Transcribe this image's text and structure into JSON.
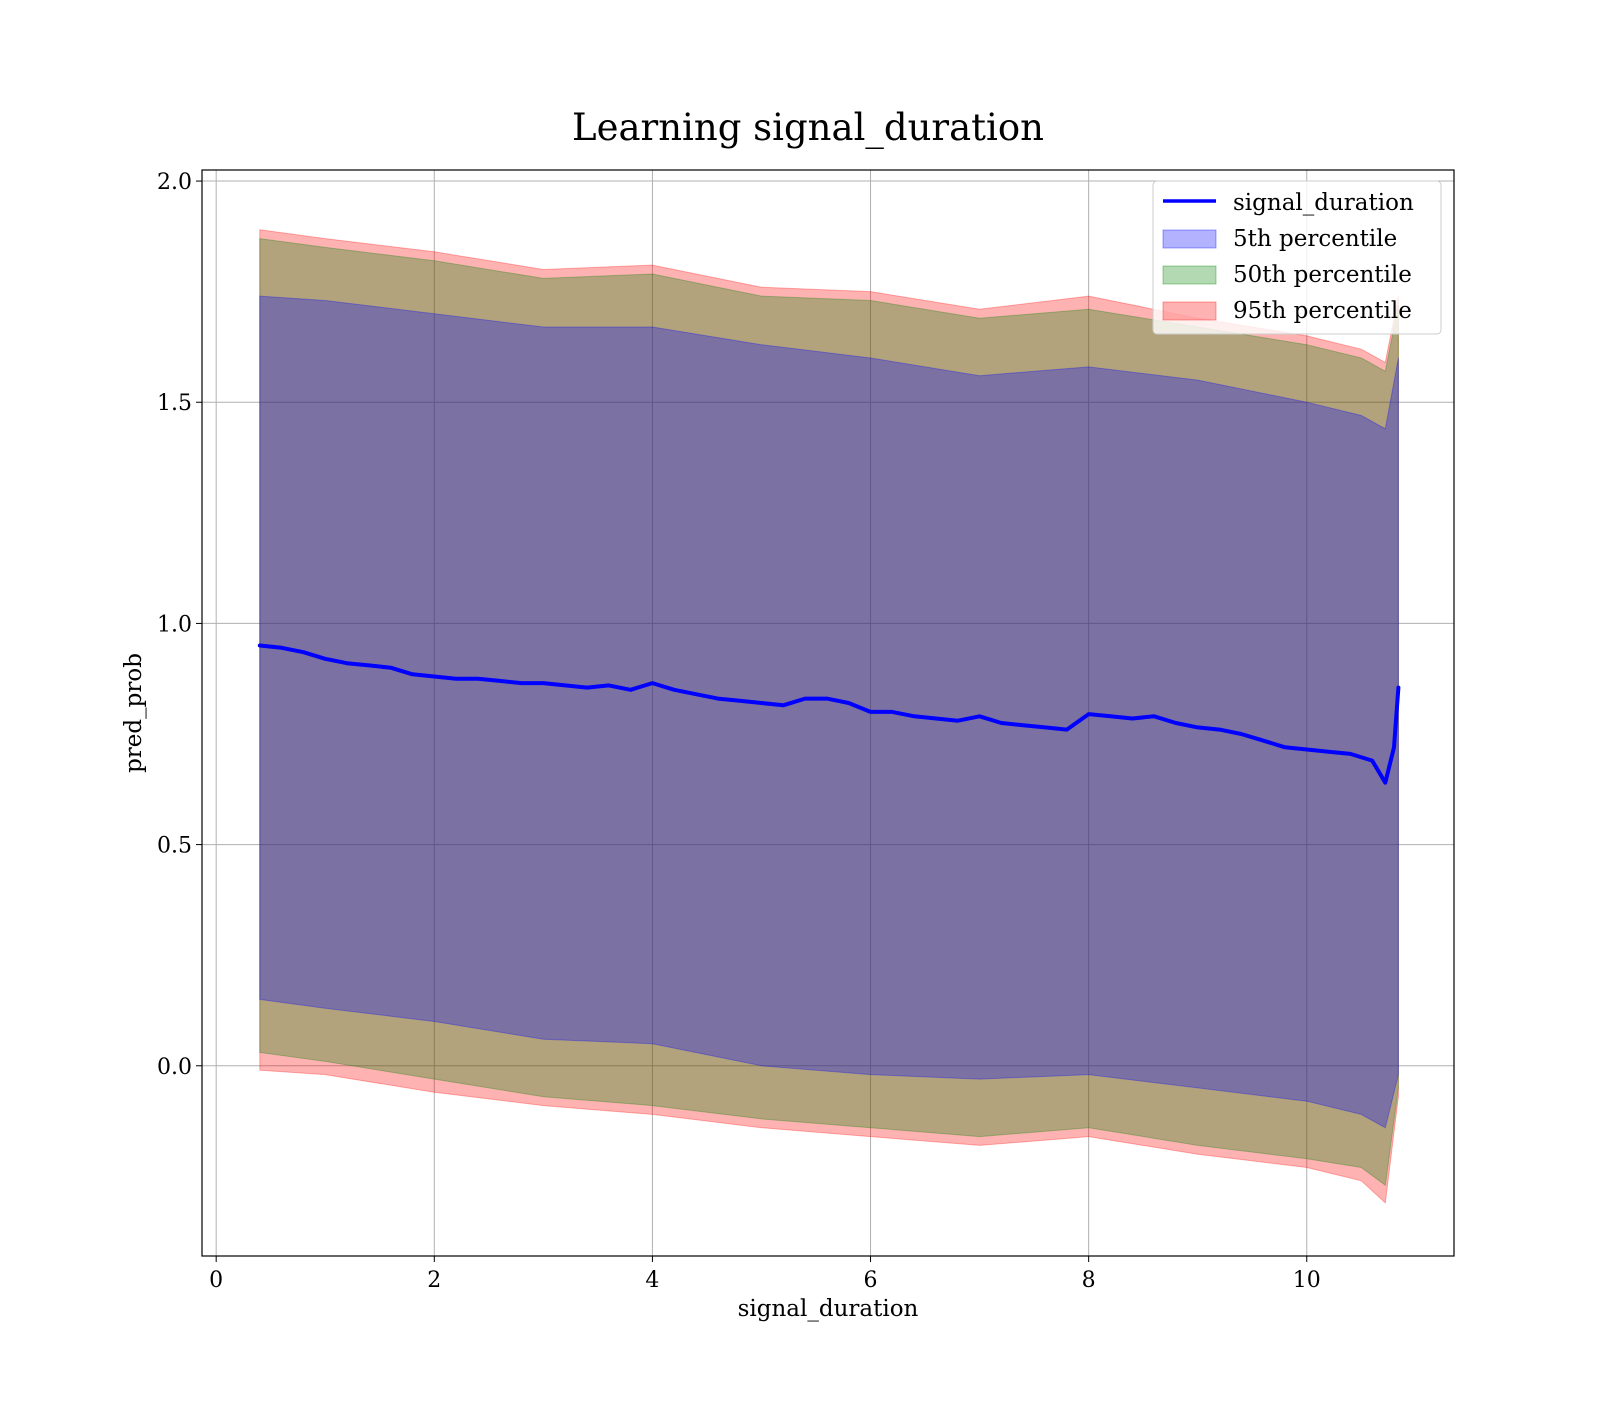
{
  "chart_data": {
    "type": "area",
    "title": "Learning signal_duration",
    "xlabel": "signal_duration",
    "ylabel": "pred_prob",
    "xlim": [
      -0.13,
      11.35
    ],
    "ylim": [
      -0.43,
      2.025
    ],
    "xticks": [
      0,
      2,
      4,
      6,
      8,
      10
    ],
    "yticks": [
      0.0,
      0.5,
      1.0,
      1.5,
      2.0
    ],
    "xtick_labels": [
      "0",
      "2",
      "4",
      "6",
      "8",
      "10"
    ],
    "ytick_labels": [
      "0.0",
      "0.5",
      "1.0",
      "1.5",
      "2.0"
    ],
    "grid": true,
    "legend_position": "top-right",
    "legend": [
      "signal_duration",
      "5th percentile",
      "50th percentile",
      "95th percentile"
    ],
    "line_series": {
      "name": "signal_duration",
      "color": "#0000ff",
      "x": [
        0.4,
        0.6,
        0.8,
        1.0,
        1.2,
        1.4,
        1.6,
        1.8,
        2.0,
        2.2,
        2.4,
        2.6,
        2.8,
        3.0,
        3.2,
        3.4,
        3.6,
        3.8,
        4.0,
        4.2,
        4.4,
        4.6,
        4.8,
        5.0,
        5.2,
        5.4,
        5.6,
        5.8,
        6.0,
        6.2,
        6.4,
        6.6,
        6.8,
        7.0,
        7.2,
        7.4,
        7.6,
        7.8,
        8.0,
        8.2,
        8.4,
        8.6,
        8.8,
        9.0,
        9.2,
        9.4,
        9.6,
        9.8,
        10.0,
        10.2,
        10.4,
        10.6,
        10.72,
        10.8,
        10.84
      ],
      "values": [
        0.95,
        0.945,
        0.935,
        0.92,
        0.91,
        0.905,
        0.9,
        0.885,
        0.88,
        0.875,
        0.875,
        0.87,
        0.865,
        0.865,
        0.86,
        0.855,
        0.86,
        0.85,
        0.865,
        0.85,
        0.84,
        0.83,
        0.825,
        0.82,
        0.815,
        0.83,
        0.83,
        0.82,
        0.8,
        0.8,
        0.79,
        0.785,
        0.78,
        0.79,
        0.775,
        0.77,
        0.765,
        0.76,
        0.795,
        0.79,
        0.785,
        0.79,
        0.775,
        0.765,
        0.76,
        0.75,
        0.735,
        0.72,
        0.715,
        0.71,
        0.705,
        0.69,
        0.64,
        0.72,
        0.855
      ]
    },
    "bands": [
      {
        "name": "5th percentile",
        "color": "#0000ff",
        "x": [
          0.4,
          1.0,
          2.0,
          3.0,
          4.0,
          5.0,
          6.0,
          7.0,
          8.0,
          9.0,
          10.0,
          10.5,
          10.72,
          10.84
        ],
        "lower": [
          0.15,
          0.13,
          0.1,
          0.06,
          0.05,
          0.0,
          -0.02,
          -0.03,
          -0.02,
          -0.05,
          -0.08,
          -0.11,
          -0.14,
          -0.02
        ],
        "upper": [
          1.74,
          1.73,
          1.7,
          1.67,
          1.67,
          1.63,
          1.6,
          1.56,
          1.58,
          1.55,
          1.5,
          1.47,
          1.44,
          1.6
        ]
      },
      {
        "name": "50th percentile",
        "color": "#008000",
        "x": [
          0.4,
          1.0,
          2.0,
          3.0,
          4.0,
          5.0,
          6.0,
          7.0,
          8.0,
          9.0,
          10.0,
          10.5,
          10.72,
          10.84
        ],
        "lower": [
          0.03,
          0.01,
          -0.03,
          -0.07,
          -0.09,
          -0.12,
          -0.14,
          -0.16,
          -0.14,
          -0.18,
          -0.21,
          -0.23,
          -0.27,
          -0.05
        ],
        "upper": [
          1.87,
          1.85,
          1.82,
          1.78,
          1.79,
          1.74,
          1.73,
          1.69,
          1.71,
          1.67,
          1.63,
          1.6,
          1.57,
          1.72
        ]
      },
      {
        "name": "95th percentile",
        "color": "#ff0000",
        "x": [
          0.4,
          1.0,
          2.0,
          3.0,
          4.0,
          5.0,
          6.0,
          7.0,
          8.0,
          9.0,
          10.0,
          10.5,
          10.72,
          10.84
        ],
        "lower": [
          -0.01,
          -0.02,
          -0.06,
          -0.09,
          -0.11,
          -0.14,
          -0.16,
          -0.18,
          -0.16,
          -0.2,
          -0.23,
          -0.26,
          -0.31,
          -0.07
        ],
        "upper": [
          1.89,
          1.87,
          1.84,
          1.8,
          1.81,
          1.76,
          1.75,
          1.71,
          1.74,
          1.69,
          1.65,
          1.62,
          1.59,
          1.74
        ]
      }
    ]
  }
}
